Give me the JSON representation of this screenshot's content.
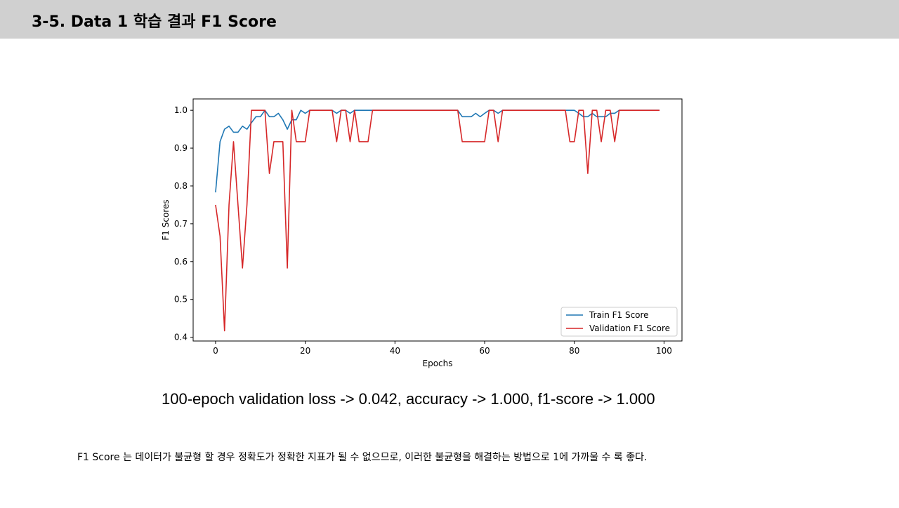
{
  "slide": {
    "title": "3-5. Data 1 학습 결과 F1 Score",
    "summary": "100-epoch validation loss -> 0.042, accuracy -> 1.000, f1-score -> 1.000",
    "footnote": "F1 Score 는 데이터가 불균형 할 경우 정확도가 정확한 지표가 될 수 없으므로, 이러한 불균형을 해결하는 방법으로 1에 가까울 수 록 좋다."
  },
  "chart_data": {
    "type": "line",
    "xlabel": "Epochs",
    "ylabel": "F1 Scores",
    "xlim": [
      -5,
      104
    ],
    "ylim": [
      0.39,
      1.03
    ],
    "xticks": [
      0,
      20,
      40,
      60,
      80,
      100
    ],
    "yticks": [
      0.4,
      0.5,
      0.6,
      0.7,
      0.8,
      0.9,
      1.0
    ],
    "xtick_labels": [
      "0",
      "20",
      "40",
      "60",
      "80",
      "100"
    ],
    "ytick_labels": [
      "0.4",
      "0.5",
      "0.6",
      "0.7",
      "0.8",
      "0.9",
      "1.0"
    ],
    "grid": false,
    "legend_position": "lower right",
    "x": [
      0,
      1,
      2,
      3,
      4,
      5,
      6,
      7,
      8,
      9,
      10,
      11,
      12,
      13,
      14,
      15,
      16,
      17,
      18,
      19,
      20,
      21,
      22,
      23,
      24,
      25,
      26,
      27,
      28,
      29,
      30,
      31,
      32,
      33,
      34,
      35,
      36,
      37,
      38,
      39,
      40,
      41,
      42,
      43,
      44,
      45,
      46,
      47,
      48,
      49,
      50,
      51,
      52,
      53,
      54,
      55,
      56,
      57,
      58,
      59,
      60,
      61,
      62,
      63,
      64,
      65,
      66,
      67,
      68,
      69,
      70,
      71,
      72,
      73,
      74,
      75,
      76,
      77,
      78,
      79,
      80,
      81,
      82,
      83,
      84,
      85,
      86,
      87,
      88,
      89,
      90,
      91,
      92,
      93,
      94,
      95,
      96,
      97,
      98,
      99
    ],
    "series": [
      {
        "name": "Train F1 Score",
        "color": "#1f77b4",
        "values": [
          0.783,
          0.917,
          0.95,
          0.958,
          0.942,
          0.942,
          0.958,
          0.95,
          0.967,
          0.983,
          0.983,
          1.0,
          0.983,
          0.983,
          0.992,
          0.975,
          0.95,
          0.975,
          0.975,
          1.0,
          0.992,
          1.0,
          1.0,
          1.0,
          1.0,
          1.0,
          1.0,
          0.992,
          1.0,
          1.0,
          0.992,
          1.0,
          1.0,
          1.0,
          1.0,
          1.0,
          1.0,
          1.0,
          1.0,
          1.0,
          1.0,
          1.0,
          1.0,
          1.0,
          1.0,
          1.0,
          1.0,
          1.0,
          1.0,
          1.0,
          1.0,
          1.0,
          1.0,
          1.0,
          1.0,
          0.983,
          0.983,
          0.983,
          0.992,
          0.983,
          0.992,
          1.0,
          1.0,
          0.992,
          1.0,
          1.0,
          1.0,
          1.0,
          1.0,
          1.0,
          1.0,
          1.0,
          1.0,
          1.0,
          1.0,
          1.0,
          1.0,
          1.0,
          1.0,
          1.0,
          1.0,
          0.992,
          0.983,
          0.983,
          0.992,
          0.983,
          0.983,
          0.983,
          0.992,
          0.992,
          1.0,
          1.0,
          1.0,
          1.0,
          1.0,
          1.0,
          1.0,
          1.0,
          1.0,
          1.0
        ]
      },
      {
        "name": "Validation F1 Score",
        "color": "#d62728",
        "values": [
          0.75,
          0.667,
          0.417,
          0.75,
          0.917,
          0.75,
          0.583,
          0.75,
          1.0,
          1.0,
          1.0,
          1.0,
          0.833,
          0.917,
          0.917,
          0.917,
          0.583,
          1.0,
          0.917,
          0.917,
          0.917,
          1.0,
          1.0,
          1.0,
          1.0,
          1.0,
          1.0,
          0.917,
          1.0,
          1.0,
          0.917,
          1.0,
          0.917,
          0.917,
          0.917,
          1.0,
          1.0,
          1.0,
          1.0,
          1.0,
          1.0,
          1.0,
          1.0,
          1.0,
          1.0,
          1.0,
          1.0,
          1.0,
          1.0,
          1.0,
          1.0,
          1.0,
          1.0,
          1.0,
          1.0,
          0.917,
          0.917,
          0.917,
          0.917,
          0.917,
          0.917,
          1.0,
          1.0,
          0.917,
          1.0,
          1.0,
          1.0,
          1.0,
          1.0,
          1.0,
          1.0,
          1.0,
          1.0,
          1.0,
          1.0,
          1.0,
          1.0,
          1.0,
          1.0,
          0.917,
          0.917,
          1.0,
          1.0,
          0.833,
          1.0,
          1.0,
          0.917,
          1.0,
          1.0,
          0.917,
          1.0,
          1.0,
          1.0,
          1.0,
          1.0,
          1.0,
          1.0,
          1.0,
          1.0,
          1.0
        ]
      }
    ]
  }
}
